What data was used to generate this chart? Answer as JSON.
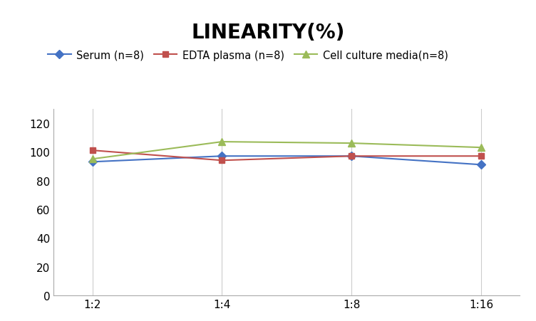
{
  "title": "LINEARITY(%)",
  "x_labels": [
    "1:2",
    "1:4",
    "1:8",
    "1:16"
  ],
  "x_positions": [
    0,
    1,
    2,
    3
  ],
  "series": [
    {
      "label": "Serum (n=8)",
      "values": [
        93,
        97,
        97,
        91
      ],
      "color": "#4472C4",
      "marker": "D",
      "marker_size": 6
    },
    {
      "label": "EDTA plasma (n=8)",
      "values": [
        101,
        94,
        97,
        97
      ],
      "color": "#C0504D",
      "marker": "s",
      "marker_size": 6
    },
    {
      "label": "Cell culture media(n=8)",
      "values": [
        95,
        107,
        106,
        103
      ],
      "color": "#9BBB59",
      "marker": "^",
      "marker_size": 7
    }
  ],
  "ylim": [
    0,
    130
  ],
  "yticks": [
    0,
    20,
    40,
    60,
    80,
    100,
    120
  ],
  "background_color": "#ffffff",
  "grid_color": "#cccccc",
  "title_fontsize": 20,
  "legend_fontsize": 10.5,
  "tick_fontsize": 11
}
